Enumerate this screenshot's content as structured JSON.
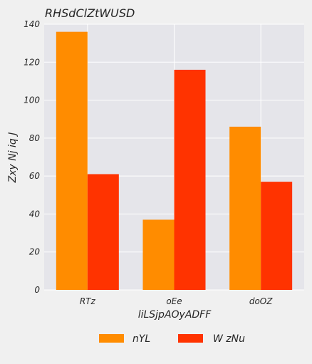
{
  "chart_data": {
    "type": "bar",
    "title": "RHSdClZtWUSD",
    "xlabel": "liLSjpAOyADFF",
    "ylabel": "Zxy Nj  iq J",
    "categories": [
      "RTz",
      "oEe",
      "doOZ"
    ],
    "series": [
      {
        "name": "nYL",
        "values": [
          136,
          37,
          86
        ],
        "color": "#ff8c00"
      },
      {
        "name": "W zNu",
        "values": [
          61,
          116,
          57
        ],
        "color": "#ff3300"
      }
    ],
    "ylim": [
      0,
      140
    ],
    "yticks": [
      0,
      20,
      40,
      60,
      80,
      100,
      120,
      140
    ],
    "grid": true,
    "legend": "bottom-center",
    "colors": {
      "plot_background": "#e5e5ea",
      "grid": "#ffffff",
      "figure_background": "#f0f0f0"
    }
  }
}
